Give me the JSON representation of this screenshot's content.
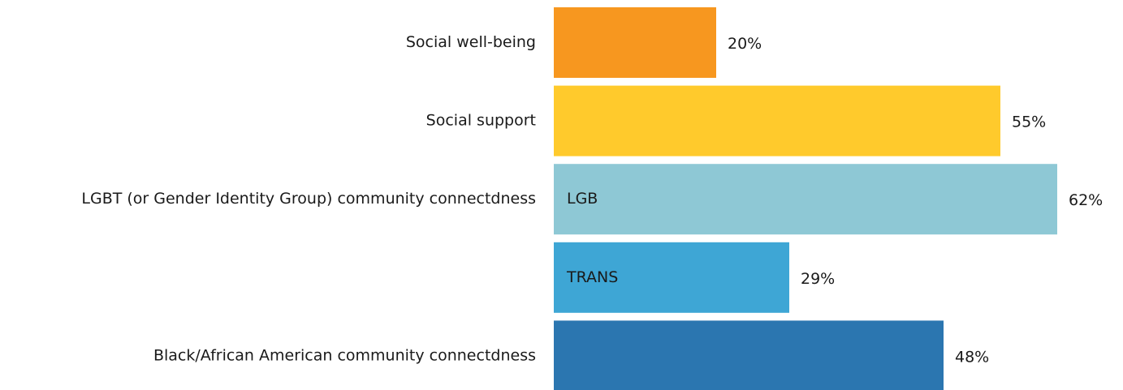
{
  "chart_data": {
    "type": "bar",
    "orientation": "horizontal",
    "categories": [
      "Social well-being",
      "Social support",
      "LGBT (or Gender Identity Group) community connectdness",
      null,
      "Black/African American community connectdness"
    ],
    "bar_labels": [
      null,
      null,
      "LGB",
      "TRANS",
      null
    ],
    "values": [
      20,
      55,
      62,
      29,
      48
    ],
    "value_labels": [
      "20%",
      "55%",
      "62%",
      "29%",
      "48%"
    ],
    "colors": [
      "#f7971f",
      "#ffca2c",
      "#8ec8d5",
      "#3ea6d5",
      "#2b76b0"
    ]
  }
}
